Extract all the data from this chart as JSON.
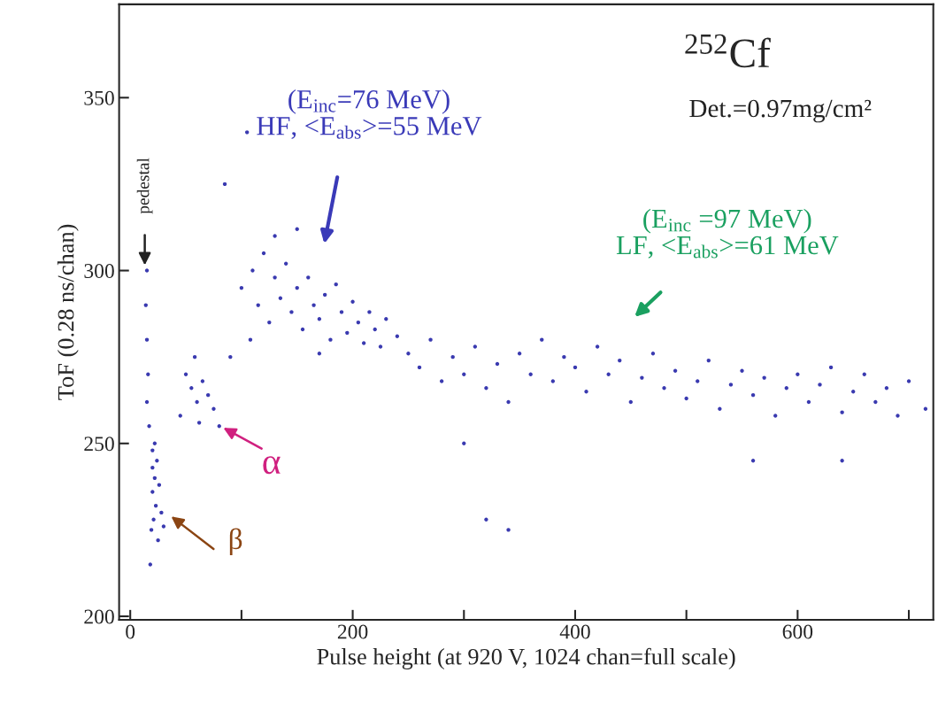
{
  "chart_data": {
    "type": "scatter",
    "title": "$^{252}$Cf",
    "xlabel": "Pulse height (at 920 V, 1024 chan=full scale)",
    "ylabel": "ToF (0.28 ns/chan)",
    "xlim": [
      -10,
      722
    ],
    "ylim": [
      199,
      377
    ],
    "xticks": [
      0,
      {
        "value": 100,
        "label": null
      },
      200,
      {
        "value": 300,
        "label": null
      },
      400,
      {
        "value": 500,
        "label": null
      },
      600,
      {
        "value": 700,
        "label": null
      }
    ],
    "yticks": [
      200,
      250,
      300,
      350
    ],
    "marker": "circle",
    "grid": false,
    "legend": false,
    "series": [
      {
        "color": "#3a3ab0",
        "x": [
          15,
          14,
          15,
          16,
          15,
          17,
          20,
          20,
          22,
          20,
          23,
          21,
          19,
          25,
          18,
          24,
          26,
          28,
          30,
          22,
          50,
          55,
          60,
          65,
          70,
          75,
          58,
          45,
          80,
          62,
          100,
          110,
          115,
          120,
          125,
          130,
          135,
          140,
          145,
          150,
          155,
          160,
          165,
          170,
          175,
          180,
          185,
          190,
          195,
          200,
          205,
          210,
          215,
          220,
          225,
          230,
          240,
          250,
          108,
          130,
          150,
          170,
          90,
          85,
          105,
          260,
          270,
          280,
          290,
          300,
          310,
          320,
          330,
          340,
          350,
          360,
          370,
          380,
          390,
          400,
          410,
          420,
          430,
          440,
          450,
          460,
          470,
          480,
          490,
          500,
          510,
          520,
          530,
          540,
          550,
          560,
          570,
          580,
          590,
          600,
          610,
          620,
          630,
          640,
          650,
          660,
          670,
          680,
          690,
          700,
          715,
          300,
          320,
          340,
          560,
          640
        ],
        "values": [
          300,
          290,
          280,
          270,
          262,
          255,
          248,
          243,
          240,
          236,
          232,
          228,
          225,
          222,
          215,
          245,
          238,
          230,
          226,
          250,
          270,
          266,
          262,
          268,
          264,
          260,
          275,
          258,
          255,
          256,
          295,
          300,
          290,
          305,
          285,
          298,
          292,
          302,
          288,
          295,
          283,
          298,
          290,
          286,
          293,
          280,
          296,
          288,
          282,
          291,
          285,
          279,
          288,
          283,
          278,
          286,
          281,
          276,
          280,
          310,
          312,
          276,
          275,
          325,
          340,
          272,
          280,
          268,
          275,
          270,
          278,
          266,
          273,
          262,
          276,
          270,
          280,
          268,
          275,
          272,
          265,
          278,
          270,
          274,
          262,
          269,
          276,
          266,
          271,
          263,
          268,
          274,
          260,
          267,
          271,
          264,
          269,
          258,
          266,
          270,
          262,
          267,
          272,
          259,
          265,
          270,
          262,
          266,
          258,
          268,
          260,
          250,
          228,
          225,
          245,
          245
        ]
      }
    ],
    "annotations": [
      "(E$_{inc}$=76 MeV)\nHF, <E$_{abs}$>=55 MeV",
      "(E$_{inc}$ =97 MeV)\nLF, <E$_{abs}$>=61 MeV",
      "α",
      "β",
      "pedestal",
      "Det.=0.97mg/cm²"
    ]
  }
}
